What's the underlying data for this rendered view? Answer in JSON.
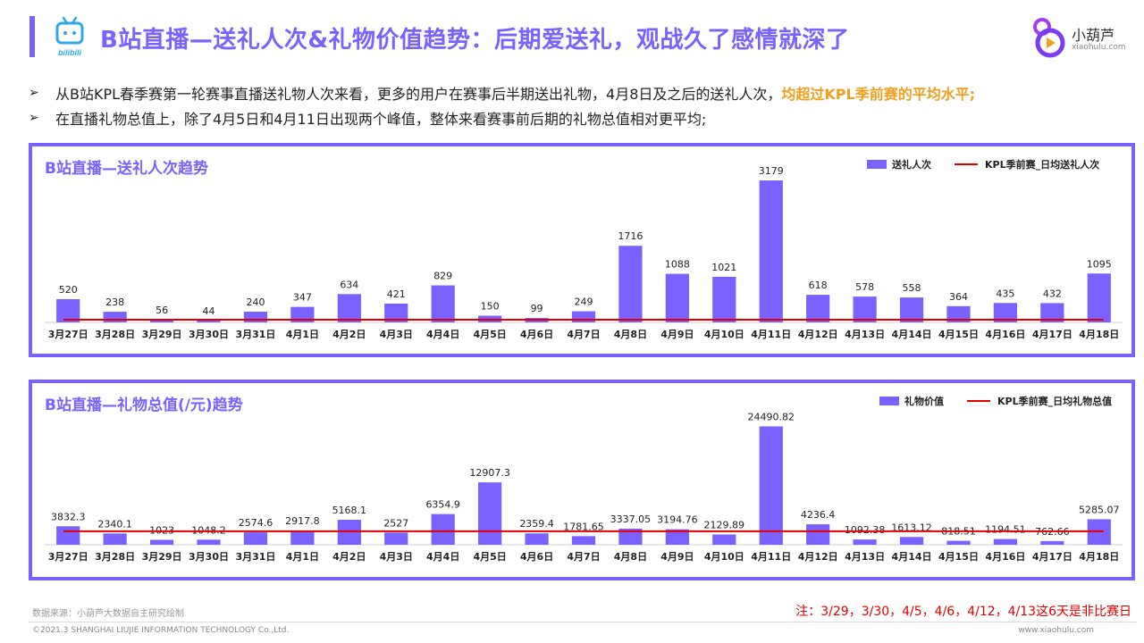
{
  "header": {
    "title": "B站直播—送礼人次&礼物价值趋势：后期爱送礼，观战久了感情就深了",
    "bili_logo_text": "bilibili",
    "brand_name": "小葫芦",
    "brand_url": "xiaohulu.com"
  },
  "bullets": [
    {
      "text": "从B站KPL春季赛第一轮赛事直播送礼物人次来看，更多的用户在赛事后半期送出礼物，4月8日及之后的送礼人次，",
      "highlight": "均超过KPL季前赛的平均水平;"
    },
    {
      "text": "在直播礼物总值上，除了4月5日和4月11日出现两个峰值，整体来看赛事前后期的礼物总值相对更平均;",
      "highlight": ""
    }
  ],
  "colors": {
    "accent": "#7b61ff",
    "bar": "#7b61ff",
    "avg_line": "#e00000",
    "highlight": "#f0a020"
  },
  "chart_data": [
    {
      "type": "bar",
      "title": "B站直播—送礼人次趋势",
      "categories": [
        "3月27日",
        "3月28日",
        "3月29日",
        "3月30日",
        "3月31日",
        "4月1日",
        "4月2日",
        "4月3日",
        "4月4日",
        "4月5日",
        "4月6日",
        "4月7日",
        "4月8日",
        "4月9日",
        "4月10日",
        "4月11日",
        "4月12日",
        "4月13日",
        "4月14日",
        "4月15日",
        "4月16日",
        "4月17日",
        "4月18日"
      ],
      "series": [
        {
          "name": "送礼人次",
          "values": [
            520,
            238,
            56,
            44,
            240,
            347,
            634,
            421,
            829,
            150,
            99,
            249,
            1716,
            1088,
            1021,
            3179,
            618,
            578,
            558,
            364,
            435,
            432,
            1095
          ]
        }
      ],
      "reference_line": {
        "name": "KPL季前赛_日均送礼人次",
        "value": 60
      },
      "value_labels": [
        "520",
        "238",
        "56",
        "44",
        "240",
        "347",
        "634",
        "421",
        "829",
        "150",
        "99",
        "249",
        "1716",
        "1088",
        "1021",
        "3179",
        "618",
        "578",
        "558",
        "364",
        "435",
        "432",
        "1095"
      ],
      "ylim": [
        0,
        3300
      ],
      "legend": "top-right",
      "grid": false
    },
    {
      "type": "bar",
      "title": "B站直播—礼物总值(/元)趋势",
      "categories": [
        "3月27日",
        "3月28日",
        "3月29日",
        "3月30日",
        "3月31日",
        "4月1日",
        "4月2日",
        "4月3日",
        "4月4日",
        "4月5日",
        "4月6日",
        "4月7日",
        "4月8日",
        "4月9日",
        "4月10日",
        "4月11日",
        "4月12日",
        "4月13日",
        "4月14日",
        "4月15日",
        "4月16日",
        "4月17日",
        "4月18日"
      ],
      "series": [
        {
          "name": "礼物价值",
          "values": [
            3832.3,
            2340.1,
            1023,
            1048.2,
            2574.6,
            2917.8,
            5168.1,
            2527,
            6354.9,
            12907.3,
            2359.4,
            1781.65,
            3337.05,
            3194.76,
            2129.89,
            24490.82,
            4236.4,
            1092.38,
            1613.12,
            818.51,
            1194.51,
            762.66,
            5285.07
          ]
        }
      ],
      "reference_line": {
        "name": "KPL季前赛_日均礼物总值",
        "value": 2800
      },
      "value_labels": [
        "3832.3",
        "2340.1",
        "1023",
        "1048.2",
        "2574.6",
        "2917.8",
        "5168.1",
        "2527",
        "6354.9",
        "12907.3",
        "2359.4",
        "1781.65",
        "3337.05",
        "3194.76",
        "2129.89",
        "24490.82",
        "4236.4",
        "1092.38",
        "1613.12",
        "818.51",
        "1194.51",
        "762.66",
        "5285.07"
      ],
      "ylim": [
        0,
        25500
      ],
      "legend": "top-right",
      "grid": false
    }
  ],
  "footer": {
    "source": "数据来源：小葫芦大数据自主研究绘制",
    "note": "注：3/29，3/30，4/5，4/6，4/12，4/13这6天是非比赛日",
    "copyright": "©2021.3 SHANGHAI LIUJIE INFORMATION TECHNOLOGY Co.,Ltd.",
    "site": "www.xiaohulu.com"
  }
}
